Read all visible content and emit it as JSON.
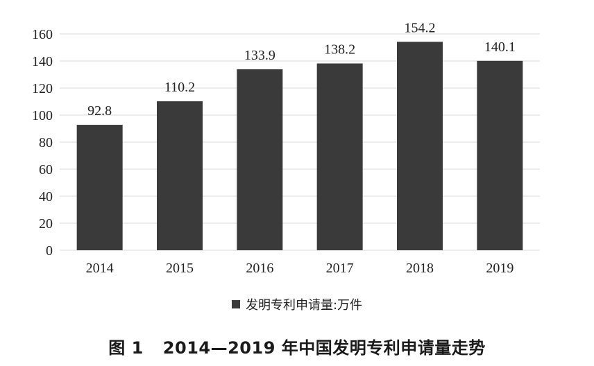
{
  "caption": {
    "figure_number": "图 1",
    "title": "2014—2019 年中国发明专利申请量走势"
  },
  "chart_data": {
    "type": "bar",
    "categories": [
      "2014",
      "2015",
      "2016",
      "2017",
      "2018",
      "2019"
    ],
    "series": [
      {
        "name": "发明专利申请量:万件",
        "values": [
          92.8,
          110.2,
          133.9,
          138.2,
          154.2,
          140.1
        ]
      }
    ],
    "data_labels": [
      "92.8",
      "110.2",
      "133.9",
      "138.2",
      "154.2",
      "140.1"
    ],
    "ylim": [
      0,
      160
    ],
    "yticks": [
      0,
      20,
      40,
      60,
      80,
      100,
      120,
      140,
      160
    ],
    "grid": true,
    "legend_position": "bottom",
    "bar_color": "#3a3a3a",
    "grid_color": "#d9d9d9"
  }
}
